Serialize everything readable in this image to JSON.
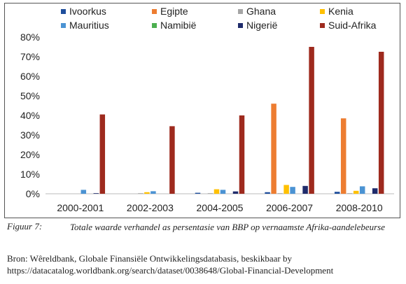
{
  "chart_data": {
    "type": "bar",
    "categories": [
      "2000-2001",
      "2002-2003",
      "2004-2005",
      "2006-2007",
      "2008-2010"
    ],
    "ylim": [
      0,
      80
    ],
    "yticks": [
      "0%",
      "10%",
      "20%",
      "30%",
      "40%",
      "50%",
      "60%",
      "70%",
      "80%"
    ],
    "legend_position": "top",
    "series": [
      {
        "name": "Ivoorkus",
        "color": "#1f4e9c",
        "values": [
          0,
          0,
          0.5,
          0.8,
          1.0
        ]
      },
      {
        "name": "Egipte",
        "color": "#ed7d31",
        "values": [
          0,
          0,
          0,
          46,
          38.5
        ]
      },
      {
        "name": "Ghana",
        "color": "#a5a5a5",
        "values": [
          0,
          0.3,
          0.3,
          0.3,
          0.3
        ]
      },
      {
        "name": "Kenia",
        "color": "#ffc000",
        "values": [
          0,
          0.8,
          2.3,
          4.5,
          1.5
        ]
      },
      {
        "name": "Mauritius",
        "color": "#4b93d3",
        "values": [
          2.0,
          1.3,
          2.0,
          3.5,
          3.8
        ]
      },
      {
        "name": "Namibië",
        "color": "#4caf50",
        "values": [
          0,
          0,
          0,
          0,
          0
        ]
      },
      {
        "name": "Nigerië",
        "color": "#1f2b6b",
        "values": [
          0.3,
          0,
          1.2,
          4.0,
          2.8
        ]
      },
      {
        "name": "Suid-Afrika",
        "color": "#9e2a1e",
        "values": [
          40.5,
          34.5,
          40,
          75,
          72.5
        ]
      }
    ]
  },
  "caption": {
    "label": "Figuur 7:",
    "text": "Totale waarde verhandel as persentasie van BBP op vernaamste Afrika-aandelebeurse"
  },
  "source": {
    "text": "Bron: Wêreldbank, Globale Finansiële Ontwikkelingsdatabasis, beskikbaar by https://datacatalog.worldbank.org/search/dataset/0038648/Global-Financial-Development"
  }
}
